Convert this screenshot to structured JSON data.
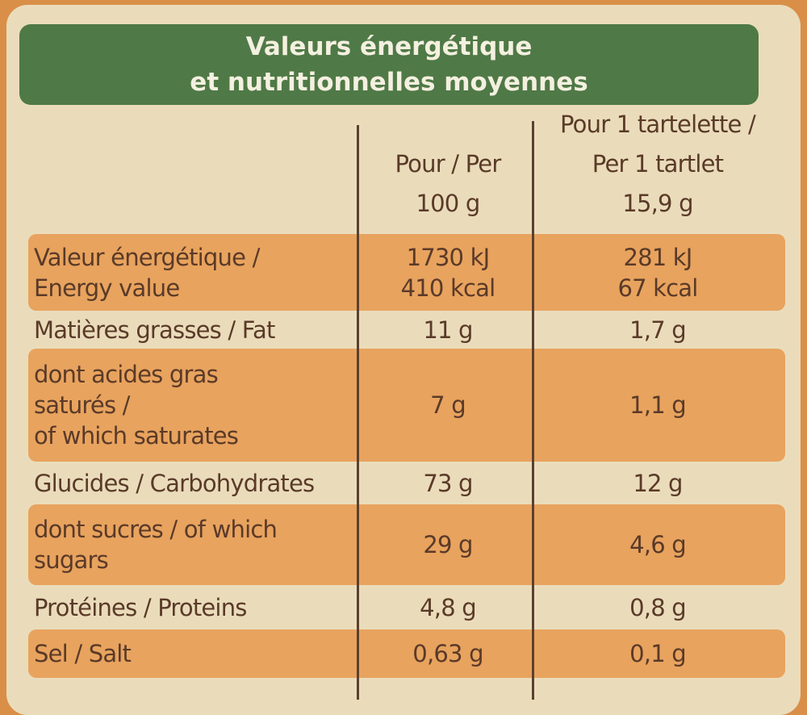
{
  "header": {
    "title": [
      "Valeurs énergétique",
      "et nutritionnelles moyennes"
    ]
  },
  "table": {
    "columns": [
      [
        "Pour / Per",
        "100 g"
      ],
      [
        "Pour 1 tartelette /",
        "Per 1 tartlet",
        "15,9 g"
      ]
    ],
    "rows": [
      {
        "label": [
          "Valeur énergétique /",
          "Energy value"
        ],
        "per_100g": [
          "1730 kJ",
          "410 kcal"
        ],
        "per_tartlet": [
          "281 kJ",
          "67 kcal"
        ]
      },
      {
        "label": [
          "Matières grasses / Fat"
        ],
        "per_100g": [
          "11 g"
        ],
        "per_tartlet": [
          "1,7 g"
        ]
      },
      {
        "label": [
          "dont acides gras",
          "saturés /",
          "of which saturates"
        ],
        "per_100g": [
          "7 g"
        ],
        "per_tartlet": [
          "1,1 g"
        ]
      },
      {
        "label": [
          "Glucides / Carbohydrates"
        ],
        "per_100g": [
          "73 g"
        ],
        "per_tartlet": [
          "12 g"
        ]
      },
      {
        "label": [
          "dont sucres / of which",
          "sugars"
        ],
        "per_100g": [
          "29 g"
        ],
        "per_tartlet": [
          "4,6 g"
        ]
      },
      {
        "label": [
          "Protéines / Proteins"
        ],
        "per_100g": [
          "4,8 g"
        ],
        "per_tartlet": [
          "0,8 g"
        ]
      },
      {
        "label": [
          "Sel / Salt"
        ],
        "per_100g": [
          "0,63 g"
        ],
        "per_tartlet": [
          "0,1 g"
        ]
      }
    ]
  }
}
